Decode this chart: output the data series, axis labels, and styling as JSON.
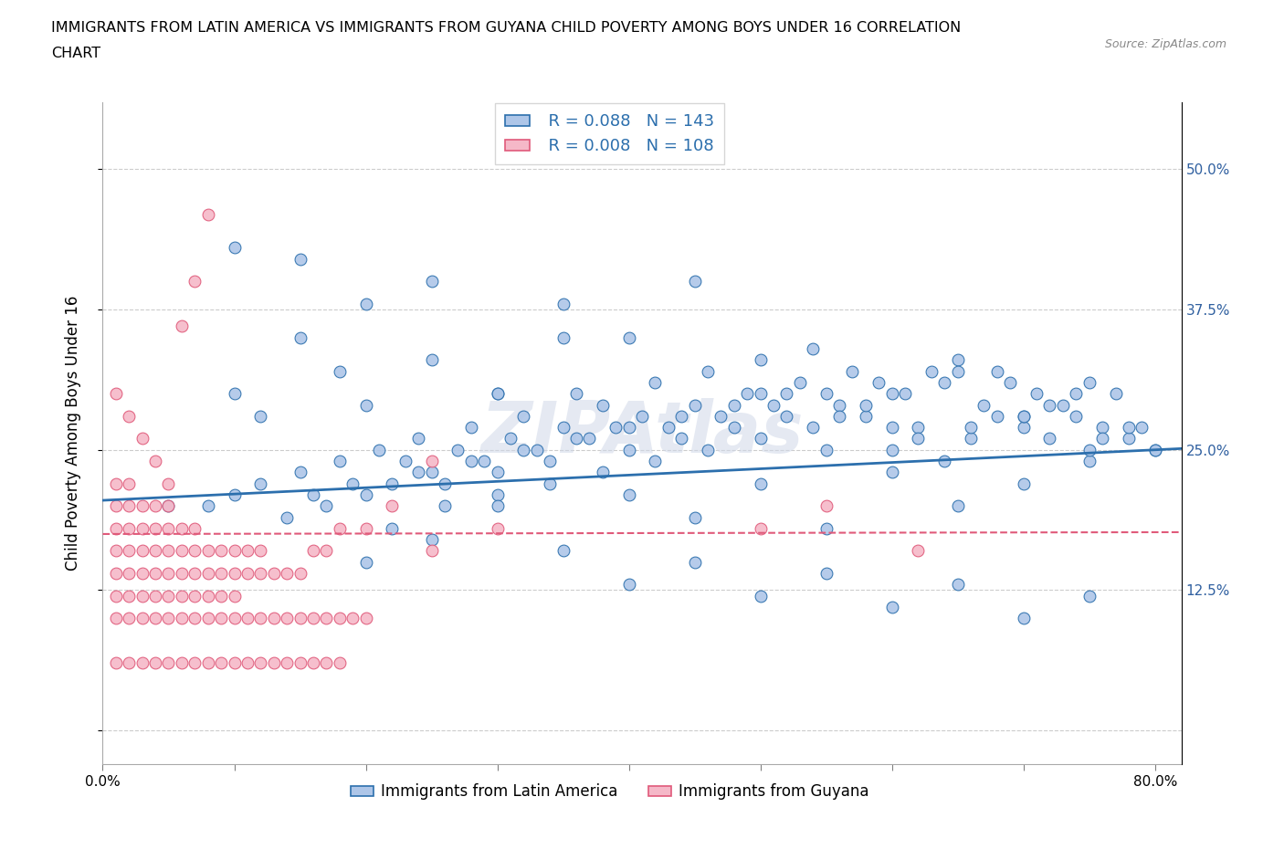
{
  "title_line1": "IMMIGRANTS FROM LATIN AMERICA VS IMMIGRANTS FROM GUYANA CHILD POVERTY AMONG BOYS UNDER 16 CORRELATION",
  "title_line2": "CHART",
  "source_text": "Source: ZipAtlas.com",
  "ylabel": "Child Poverty Among Boys Under 16",
  "xlim": [
    0.0,
    0.82
  ],
  "ylim": [
    -0.03,
    0.56
  ],
  "xticks": [
    0.0,
    0.1,
    0.2,
    0.3,
    0.4,
    0.5,
    0.6,
    0.7,
    0.8
  ],
  "yticks": [
    0.0,
    0.125,
    0.25,
    0.375,
    0.5
  ],
  "blue_color": "#aec6e8",
  "pink_color": "#f5b8c8",
  "blue_line_color": "#2c6fad",
  "pink_line_color": "#e05a7a",
  "R_blue": 0.088,
  "N_blue": 143,
  "R_pink": 0.008,
  "N_pink": 108,
  "legend_blue_label": "Immigrants from Latin America",
  "legend_pink_label": "Immigrants from Guyana",
  "watermark": "ZIPAtlas",
  "blue_scatter_x": [
    0.05,
    0.08,
    0.1,
    0.12,
    0.14,
    0.15,
    0.16,
    0.17,
    0.18,
    0.19,
    0.2,
    0.21,
    0.22,
    0.23,
    0.24,
    0.25,
    0.26,
    0.27,
    0.28,
    0.29,
    0.3,
    0.31,
    0.32,
    0.33,
    0.34,
    0.35,
    0.36,
    0.37,
    0.38,
    0.39,
    0.4,
    0.41,
    0.42,
    0.43,
    0.44,
    0.45,
    0.46,
    0.47,
    0.48,
    0.49,
    0.5,
    0.51,
    0.52,
    0.53,
    0.54,
    0.55,
    0.56,
    0.57,
    0.58,
    0.59,
    0.6,
    0.61,
    0.62,
    0.63,
    0.64,
    0.65,
    0.66,
    0.67,
    0.68,
    0.69,
    0.7,
    0.71,
    0.72,
    0.73,
    0.74,
    0.75,
    0.76,
    0.77,
    0.78,
    0.79,
    0.22,
    0.24,
    0.26,
    0.28,
    0.3,
    0.32,
    0.34,
    0.36,
    0.38,
    0.4,
    0.42,
    0.44,
    0.46,
    0.48,
    0.5,
    0.52,
    0.54,
    0.56,
    0.58,
    0.6,
    0.62,
    0.64,
    0.66,
    0.68,
    0.7,
    0.72,
    0.74,
    0.76,
    0.78,
    0.8,
    0.1,
    0.12,
    0.15,
    0.18,
    0.2,
    0.25,
    0.3,
    0.35,
    0.4,
    0.45,
    0.5,
    0.55,
    0.6,
    0.65,
    0.7,
    0.75,
    0.2,
    0.25,
    0.3,
    0.35,
    0.4,
    0.45,
    0.5,
    0.55,
    0.6,
    0.65,
    0.7,
    0.75,
    0.1,
    0.15,
    0.2,
    0.25,
    0.3,
    0.35,
    0.4,
    0.45,
    0.5,
    0.55,
    0.6,
    0.65,
    0.7,
    0.75,
    0.8
  ],
  "blue_scatter_y": [
    0.2,
    0.2,
    0.21,
    0.22,
    0.19,
    0.23,
    0.21,
    0.2,
    0.24,
    0.22,
    0.21,
    0.25,
    0.22,
    0.24,
    0.26,
    0.23,
    0.22,
    0.25,
    0.27,
    0.24,
    0.23,
    0.26,
    0.28,
    0.25,
    0.24,
    0.27,
    0.3,
    0.26,
    0.29,
    0.27,
    0.25,
    0.28,
    0.31,
    0.27,
    0.26,
    0.29,
    0.32,
    0.28,
    0.27,
    0.3,
    0.33,
    0.29,
    0.28,
    0.31,
    0.34,
    0.3,
    0.29,
    0.32,
    0.28,
    0.31,
    0.25,
    0.3,
    0.27,
    0.32,
    0.24,
    0.33,
    0.26,
    0.29,
    0.28,
    0.31,
    0.27,
    0.3,
    0.26,
    0.29,
    0.28,
    0.31,
    0.27,
    0.3,
    0.26,
    0.27,
    0.18,
    0.23,
    0.2,
    0.24,
    0.21,
    0.25,
    0.22,
    0.26,
    0.23,
    0.27,
    0.24,
    0.28,
    0.25,
    0.29,
    0.26,
    0.3,
    0.27,
    0.28,
    0.29,
    0.3,
    0.26,
    0.31,
    0.27,
    0.32,
    0.28,
    0.29,
    0.3,
    0.26,
    0.27,
    0.25,
    0.3,
    0.28,
    0.35,
    0.32,
    0.29,
    0.33,
    0.3,
    0.38,
    0.35,
    0.4,
    0.3,
    0.25,
    0.27,
    0.32,
    0.28,
    0.24,
    0.15,
    0.17,
    0.2,
    0.16,
    0.21,
    0.19,
    0.22,
    0.18,
    0.23,
    0.2,
    0.22,
    0.25,
    0.43,
    0.42,
    0.38,
    0.4,
    0.3,
    0.35,
    0.13,
    0.15,
    0.12,
    0.14,
    0.11,
    0.13,
    0.1,
    0.12,
    0.25
  ],
  "pink_scatter_x": [
    0.01,
    0.01,
    0.01,
    0.01,
    0.01,
    0.02,
    0.02,
    0.02,
    0.02,
    0.02,
    0.03,
    0.03,
    0.03,
    0.03,
    0.04,
    0.04,
    0.04,
    0.04,
    0.05,
    0.05,
    0.05,
    0.05,
    0.06,
    0.06,
    0.06,
    0.07,
    0.07,
    0.07,
    0.08,
    0.08,
    0.09,
    0.09,
    0.1,
    0.1,
    0.11,
    0.11,
    0.12,
    0.12,
    0.13,
    0.14,
    0.15,
    0.16,
    0.17,
    0.18,
    0.2,
    0.22,
    0.25,
    0.01,
    0.01,
    0.02,
    0.02,
    0.03,
    0.03,
    0.04,
    0.04,
    0.05,
    0.05,
    0.06,
    0.06,
    0.07,
    0.07,
    0.08,
    0.08,
    0.09,
    0.09,
    0.1,
    0.1,
    0.11,
    0.12,
    0.13,
    0.14,
    0.15,
    0.16,
    0.17,
    0.18,
    0.19,
    0.2,
    0.25,
    0.3,
    0.01,
    0.02,
    0.03,
    0.04,
    0.05,
    0.06,
    0.07,
    0.08,
    0.09,
    0.1,
    0.11,
    0.12,
    0.13,
    0.14,
    0.15,
    0.16,
    0.17,
    0.18,
    0.01,
    0.02,
    0.03,
    0.04,
    0.05,
    0.06,
    0.07,
    0.08,
    0.5,
    0.55,
    0.62
  ],
  "pink_scatter_y": [
    0.14,
    0.16,
    0.18,
    0.2,
    0.22,
    0.14,
    0.16,
    0.18,
    0.2,
    0.22,
    0.14,
    0.16,
    0.18,
    0.2,
    0.14,
    0.16,
    0.18,
    0.2,
    0.14,
    0.16,
    0.18,
    0.2,
    0.14,
    0.16,
    0.18,
    0.14,
    0.16,
    0.18,
    0.14,
    0.16,
    0.14,
    0.16,
    0.14,
    0.16,
    0.14,
    0.16,
    0.14,
    0.16,
    0.14,
    0.14,
    0.14,
    0.16,
    0.16,
    0.18,
    0.18,
    0.2,
    0.24,
    0.1,
    0.12,
    0.1,
    0.12,
    0.1,
    0.12,
    0.1,
    0.12,
    0.1,
    0.12,
    0.1,
    0.12,
    0.1,
    0.12,
    0.1,
    0.12,
    0.1,
    0.12,
    0.1,
    0.12,
    0.1,
    0.1,
    0.1,
    0.1,
    0.1,
    0.1,
    0.1,
    0.1,
    0.1,
    0.1,
    0.16,
    0.18,
    0.06,
    0.06,
    0.06,
    0.06,
    0.06,
    0.06,
    0.06,
    0.06,
    0.06,
    0.06,
    0.06,
    0.06,
    0.06,
    0.06,
    0.06,
    0.06,
    0.06,
    0.06,
    0.3,
    0.28,
    0.26,
    0.24,
    0.22,
    0.36,
    0.4,
    0.46,
    0.18,
    0.2,
    0.16
  ]
}
